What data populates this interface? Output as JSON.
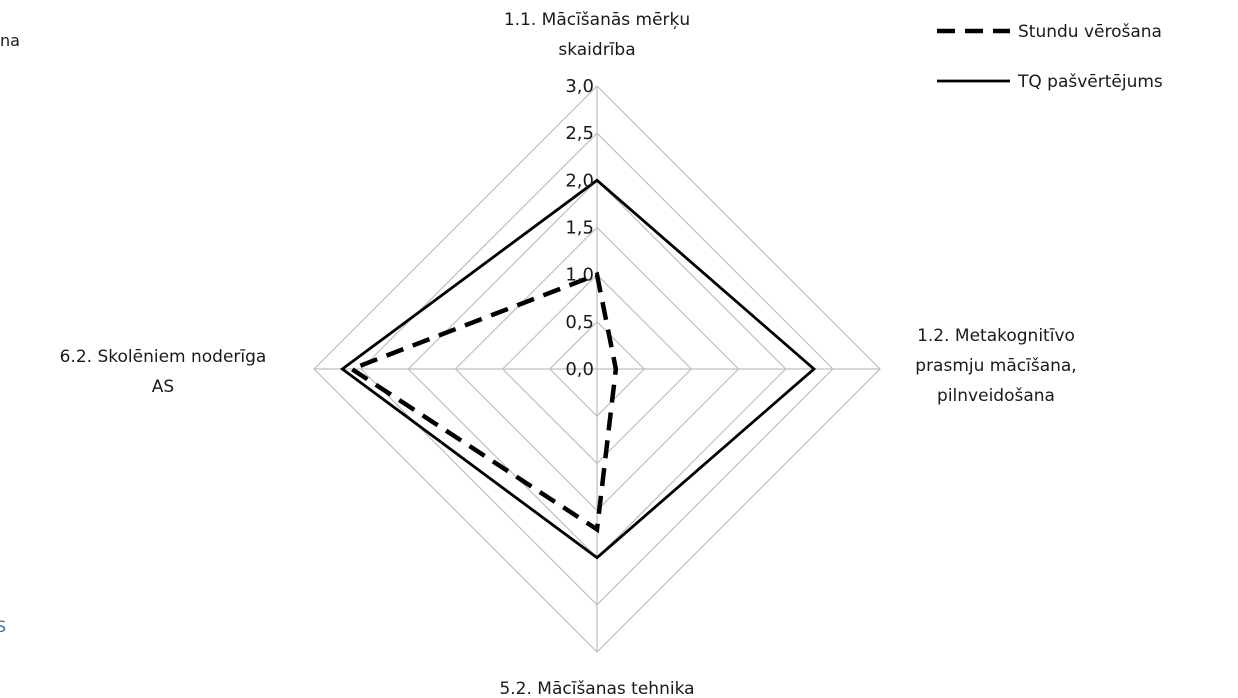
{
  "chart_data": {
    "type": "radar",
    "title": "",
    "axes": [
      {
        "label_lines": [
          "1.1. Mācīšanās mērķu",
          "skaidrība"
        ]
      },
      {
        "label_lines": [
          "1.2. Metakognitīvo",
          "prasmju mācīšana,",
          "pilnveidošana"
        ]
      },
      {
        "label_lines": [
          "5.2. Mācīšanas tehnika"
        ]
      },
      {
        "label_lines": [
          "6.2. Skolēniem noderīga",
          "AS"
        ]
      }
    ],
    "rlim": [
      0,
      3
    ],
    "ticks": [
      "0,0",
      "0,5",
      "1,0",
      "1,5",
      "2,0",
      "2,5",
      "3,0"
    ],
    "tick_values": [
      0,
      0.5,
      1.0,
      1.5,
      2.0,
      2.5,
      3.0
    ],
    "grid": true,
    "legend_position": "top-right",
    "series": [
      {
        "name": "Stundu vērošana",
        "style": "dashed",
        "color": "#000000",
        "values": [
          1.0,
          0.2,
          1.7,
          2.6
        ]
      },
      {
        "name": "TQ pašvērtējums",
        "style": "solid",
        "color": "#000000",
        "values": [
          2.0,
          2.3,
          2.0,
          2.7
        ]
      }
    ]
  },
  "clipped_text": {
    "left_top": "na",
    "left_bottom": "S"
  },
  "colors": {
    "grid": "#bfbfbf",
    "series": "#000000",
    "clipped_blue": "#2e75b6"
  }
}
